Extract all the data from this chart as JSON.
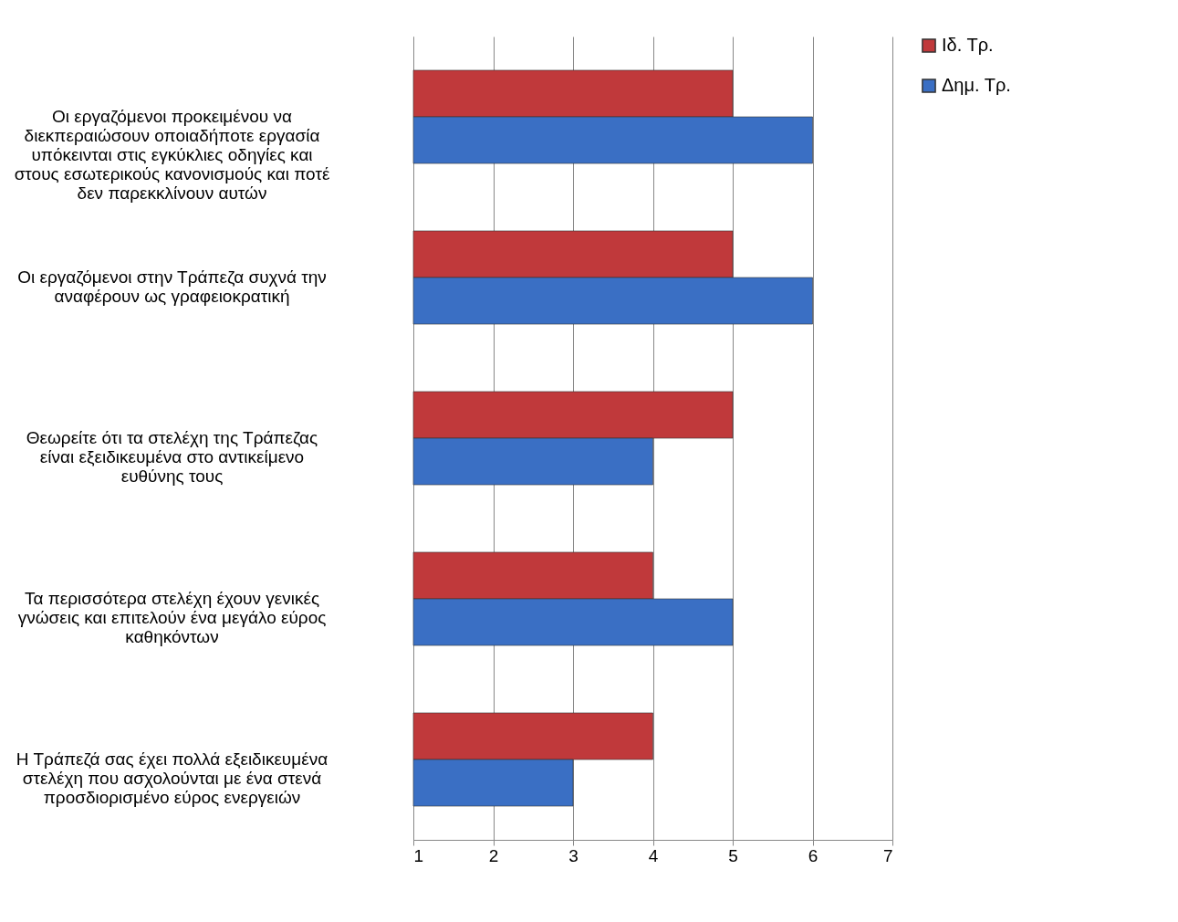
{
  "chart_data": {
    "type": "bar",
    "orientation": "horizontal",
    "categories": [
      "Οι εργαζόμενοι προκειμένου να διεκπεραιώσουν οποιαδήποτε εργασία υπόκεινται στις εγκύκλιες οδηγίες και στους εσωτερικούς κανονισμούς και ποτέ δεν παρεκκλίνουν αυτών",
      "Οι εργαζόμενοι στην Τράπεζα συχνά την αναφέρουν ως γραφειοκρατική",
      "Θεωρείτε ότι τα στελέχη της Τράπεζας είναι εξειδικευμένα στο αντικείμενο ευθύνης τους",
      "Τα περισσότερα στελέχη έχουν γενικές γνώσεις και επιτελούν ένα μεγάλο εύρος καθηκόντων",
      "Η Τράπεζά σας έχει πολλά εξειδικευμένα στελέχη που ασχολούνται με ένα στενά προσδιορισμένο εύρος ενεργειών"
    ],
    "series": [
      {
        "name": "Ιδ. Τρ.",
        "color": "#c0393b",
        "values": [
          5,
          5,
          5,
          4,
          4
        ]
      },
      {
        "name": "Δημ. Τρ.",
        "color": "#3a6fc4",
        "values": [
          6,
          6,
          4,
          5,
          3
        ]
      }
    ],
    "xlim": [
      1,
      7
    ],
    "xticks": [
      1,
      2,
      3,
      4,
      5,
      6,
      7
    ],
    "grid": "x",
    "legend": "right"
  }
}
